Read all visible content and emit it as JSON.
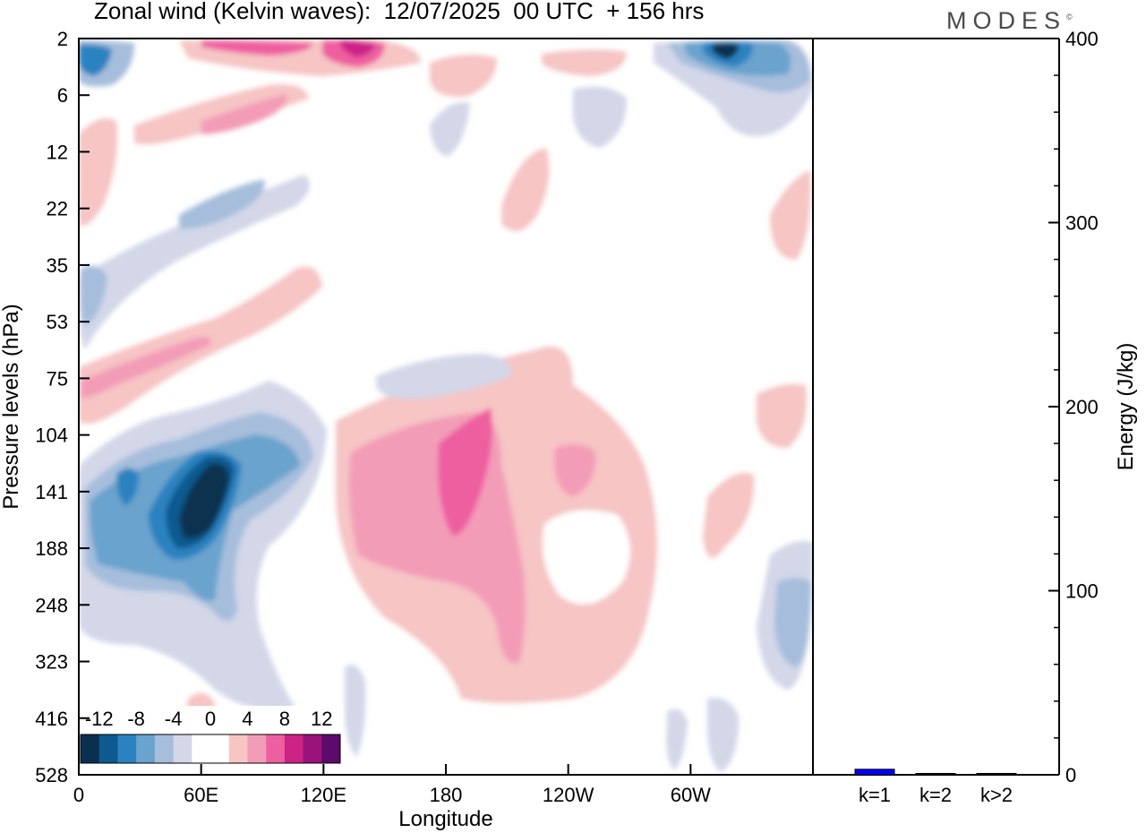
{
  "header": {
    "title": "Zonal wind (Kelvin waves):  12/07/2025  00 UTC  + 156 hrs",
    "logo": "MODES",
    "logo_mark": "©"
  },
  "chart_data": [
    {
      "type": "heatmap",
      "title": "Zonal wind (Kelvin waves):  12/07/2025  00 UTC  + 156 hrs",
      "xlabel": "Longitude",
      "ylabel": "Pressure levels (hPa)",
      "x_ticks": [
        "0",
        "60E",
        "120E",
        "180",
        "120W",
        "60W"
      ],
      "x_tick_values": [
        0,
        60,
        120,
        180,
        240,
        300
      ],
      "xlim": [
        0,
        360
      ],
      "y_ticks": [
        "2",
        "6",
        "12",
        "22",
        "35",
        "53",
        "75",
        "104",
        "141",
        "188",
        "248",
        "323",
        "416",
        "528"
      ],
      "y_scale": "level index (top to bottom)",
      "colorbar": {
        "labels": [
          "-12",
          "-8",
          "-4",
          "0",
          "4",
          "8",
          "12"
        ],
        "colors": [
          "#0a3050",
          "#0c5a90",
          "#2b82c0",
          "#6aa3cd",
          "#a6bedc",
          "#d3d7e8",
          "#ffffff",
          "#ffffff",
          "#f6c5c4",
          "#f39cb7",
          "#ee5fa0",
          "#cc2386",
          "#99137a",
          "#5c0a6b"
        ],
        "placement": "bottom-left"
      },
      "features": [
        {
          "sign": "negative",
          "peak": -14,
          "longitude": 55,
          "level": "141"
        },
        {
          "sign": "negative",
          "peak": -12,
          "longitude": 300,
          "level": "2"
        },
        {
          "sign": "negative",
          "peak": -10,
          "longitude": 3,
          "level": "2"
        },
        {
          "sign": "positive",
          "peak": 8,
          "longitude": 190,
          "level": "120"
        },
        {
          "sign": "positive",
          "peak": 10,
          "longitude": 130,
          "level": "2"
        },
        {
          "sign": "positive",
          "peak": 8,
          "longitude": 60,
          "level": "2"
        },
        {
          "sign": "positive",
          "peak": 6,
          "longitude": 25,
          "level": "60"
        }
      ]
    },
    {
      "type": "bar",
      "ylabel": "Energy (J/kg)",
      "ylim": [
        0,
        400
      ],
      "y_ticks": [
        "0",
        "100",
        "200",
        "300",
        "400"
      ],
      "categories": [
        "k=1",
        "k=2",
        "k>2"
      ],
      "values": [
        3,
        0.4,
        0.3
      ],
      "colors": [
        "#0000ff",
        "#000000",
        "#000000"
      ]
    }
  ]
}
